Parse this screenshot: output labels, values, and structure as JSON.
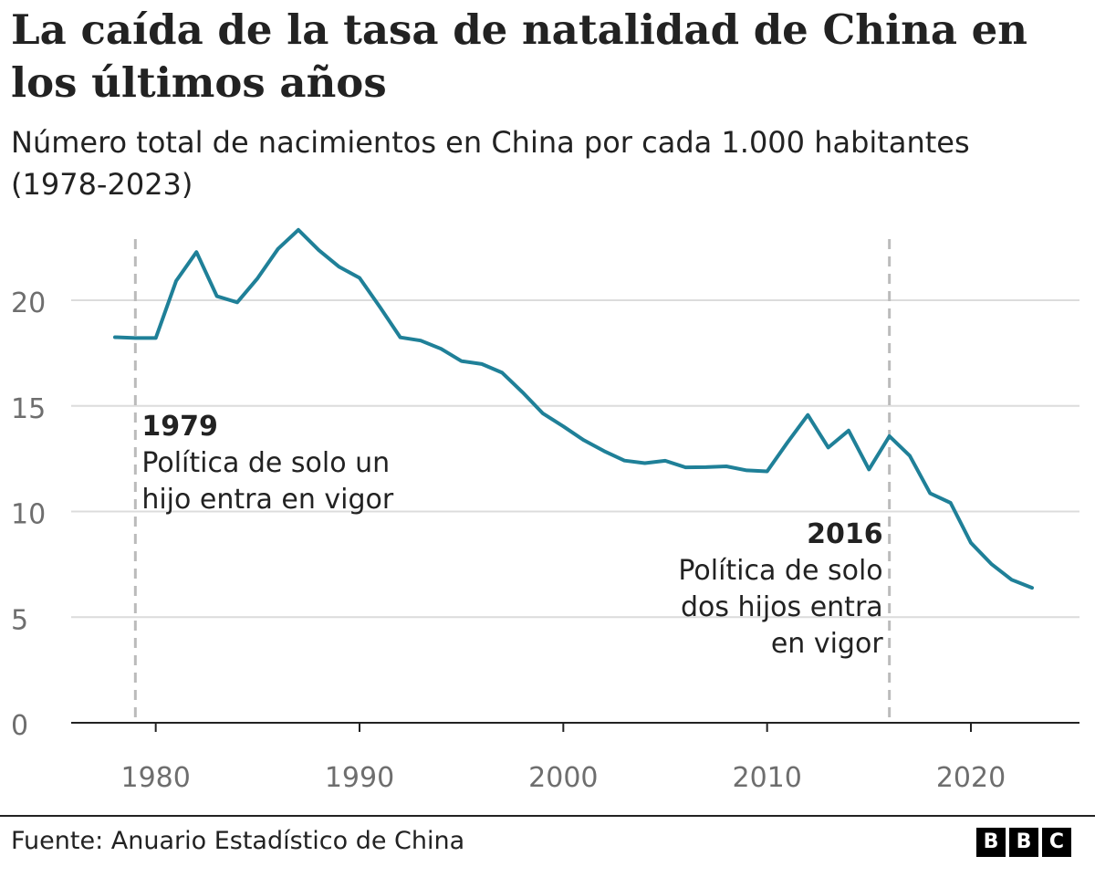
{
  "title": "La caída de la tasa de natalidad de China en los últimos años",
  "subtitle": "Número total de nacimientos en China por cada 1.000 habitantes (1978-2023)",
  "footer": {
    "source": "Fuente: Anuario Estadístico de China",
    "logo_letters": [
      "B",
      "B",
      "C"
    ]
  },
  "colors": {
    "line": "#1f8098",
    "grid": "#dcdcdc",
    "axis": "#222222",
    "text": "#222222",
    "tick_text": "#6e6e6e",
    "marker_line": "#bbbbbb"
  },
  "chart_data": {
    "type": "line",
    "title": "La caída de la tasa de natalidad de China en los últimos años",
    "subtitle": "Número total de nacimientos en China por cada 1.000 habitantes (1978-2023)",
    "xlabel": "",
    "ylabel": "",
    "xlim": [
      1978,
      2023
    ],
    "ylim": [
      0,
      23
    ],
    "x_ticks": [
      1980,
      1990,
      2000,
      2010,
      2020
    ],
    "y_ticks": [
      0,
      5,
      10,
      15,
      20
    ],
    "grid": "horizontal",
    "legend": "none",
    "series": [
      {
        "x": [
          1978,
          1979,
          1980,
          1981,
          1982,
          1983,
          1984,
          1985,
          1986,
          1987,
          1988,
          1989,
          1990,
          1991,
          1992,
          1993,
          1994,
          1995,
          1996,
          1997,
          1998,
          1999,
          2000,
          2001,
          2002,
          2003,
          2004,
          2005,
          2006,
          2007,
          2008,
          2009,
          2010,
          2011,
          2012,
          2013,
          2014,
          2015,
          2016,
          2017,
          2018,
          2019,
          2020,
          2021,
          2022,
          2023
        ],
        "values": [
          18.25,
          18.21,
          18.21,
          20.91,
          22.28,
          20.19,
          19.9,
          21.04,
          22.43,
          23.33,
          22.37,
          21.58,
          21.06,
          19.68,
          18.24,
          18.09,
          17.7,
          17.12,
          16.98,
          16.57,
          15.64,
          14.64,
          14.03,
          13.38,
          12.86,
          12.41,
          12.29,
          12.4,
          12.09,
          12.1,
          12.14,
          11.95,
          11.9,
          13.27,
          14.57,
          13.03,
          13.83,
          11.99,
          13.57,
          12.64,
          10.86,
          10.41,
          8.52,
          7.52,
          6.77,
          6.39
        ]
      }
    ],
    "annotations": [
      {
        "x": 1979,
        "year_label": "1979",
        "text_lines": [
          "Política de solo un",
          "hijo entra en vigor"
        ],
        "align": "left"
      },
      {
        "x": 2016,
        "year_label": "2016",
        "text_lines": [
          "Política de solo",
          "dos hijos entra",
          "en vigor"
        ],
        "align": "right"
      }
    ]
  }
}
